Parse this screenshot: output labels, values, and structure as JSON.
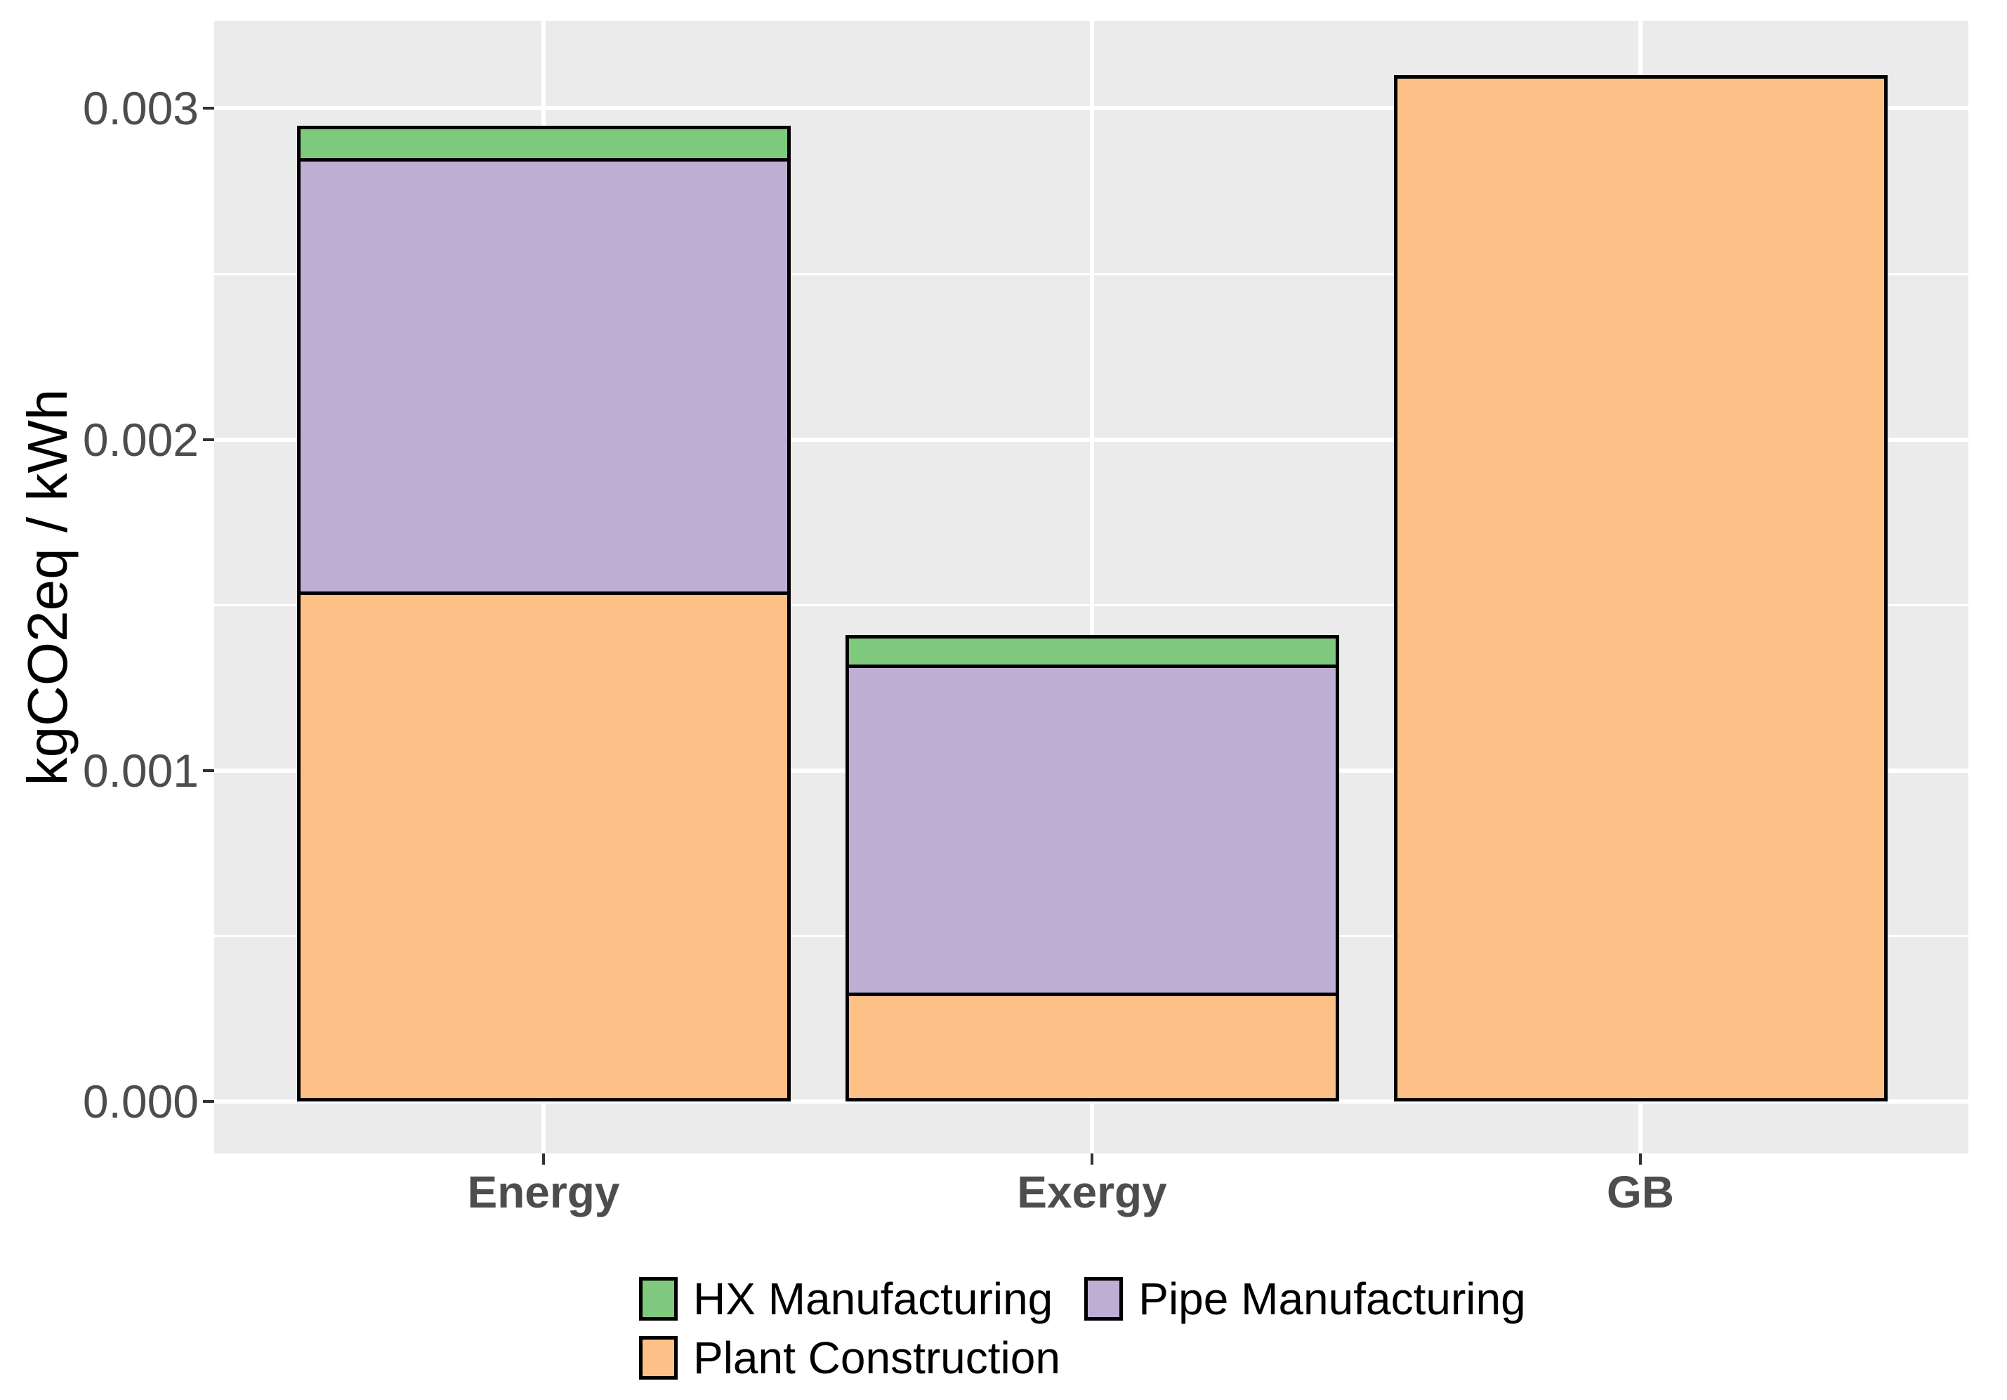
{
  "figure": {
    "background": "#FFFFFF"
  },
  "y_axis": {
    "title": "kgCO2eq / kWh",
    "tick_labels": [
      "0.000",
      "0.001",
      "0.002",
      "0.003"
    ],
    "tick_values": [
      0,
      0.001,
      0.002,
      0.003
    ],
    "minor_tick_values": [
      0.0005,
      0.0015,
      0.0025
    ],
    "text_color": "#4D4D4D"
  },
  "x_axis": {
    "categories": [
      "Energy",
      "Exergy",
      "GB"
    ],
    "text_color": "#4D4D4D"
  },
  "legend": {
    "rows": [
      [
        "HX Manufacturing",
        "Pipe Manufacturing"
      ],
      [
        "Plant Construction"
      ]
    ]
  },
  "chart_data": {
    "type": "bar",
    "stacked": true,
    "categories": [
      "Energy",
      "Exergy",
      "GB"
    ],
    "series": [
      {
        "name": "Plant Construction",
        "color": "#FDC086",
        "values": [
          0.00154,
          0.00033,
          0.0031
        ]
      },
      {
        "name": "Pipe Manufacturing",
        "color": "#BEAED4",
        "values": [
          0.00132,
          0.001,
          0
        ]
      },
      {
        "name": "HX Manufacturing",
        "color": "#7FC97F",
        "values": [
          0.00011,
          0.0001,
          0
        ]
      }
    ],
    "totals": [
      0.00297,
      0.00143,
      0.0031
    ],
    "title": "",
    "xlabel": "",
    "ylabel": "kgCO2eq / kWh",
    "ylim": [
      0,
      0.003255
    ],
    "grid": true,
    "panel_background": "#EBEBEB",
    "grid_color": "#FFFFFF",
    "bar_outline_color": "#000000",
    "legend_position": "bottom"
  }
}
